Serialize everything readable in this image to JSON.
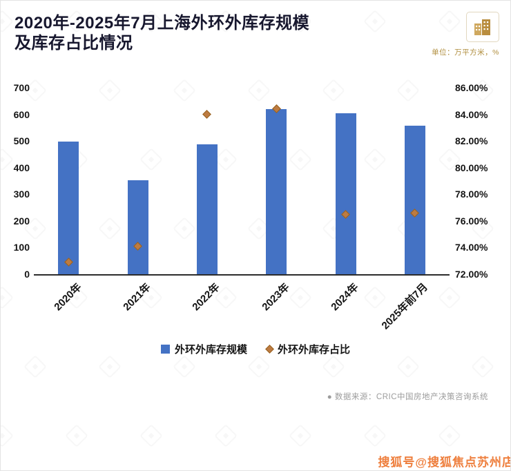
{
  "header": {
    "title_line1": "2020年-2025年7月上海外环外库存规模",
    "title_line2": "及库存占比情况",
    "unit_note": "单位：万平方米，%"
  },
  "chart_data": {
    "type": "bar",
    "subtype": "bar-with-scatter-overlay",
    "title": "2020年-2025年7月上海外环外库存规模及库存占比情况",
    "categories": [
      "2020年",
      "2021年",
      "2022年",
      "2023年",
      "2024年",
      "2025年前7月"
    ],
    "series": [
      {
        "name": "外环外库存规模",
        "type": "bar",
        "axis": "left",
        "values": [
          497,
          352,
          488,
          620,
          603,
          558
        ]
      },
      {
        "name": "外环外库存占比",
        "type": "scatter",
        "axis": "right",
        "values": [
          72.9,
          74.1,
          84.0,
          84.4,
          76.5,
          76.6
        ]
      }
    ],
    "left_axis": {
      "min": 0,
      "max": 700,
      "step": 100,
      "ticks": [
        "700",
        "600",
        "500",
        "400",
        "300",
        "200",
        "100",
        "0"
      ]
    },
    "right_axis": {
      "min": 72,
      "max": 86,
      "step": 2,
      "ticks": [
        "86.00%",
        "84.00%",
        "82.00%",
        "80.00%",
        "78.00%",
        "76.00%",
        "74.00%",
        "72.00%"
      ]
    },
    "grid": false,
    "legend_position": "bottom",
    "legend": [
      {
        "label": "外环外库存规模",
        "marker": "square",
        "color": "#4472c4"
      },
      {
        "label": "外环外库存占比",
        "marker": "diamond",
        "color": "#bd7b41"
      }
    ]
  },
  "footer": {
    "source": "●  数据来源：CRIC中国房地产决策咨询系统"
  },
  "watermark_text": "搜狐号@搜狐焦点苏州店",
  "colors": {
    "bar": "#4472c4",
    "point": "#bd7b41",
    "title": "#17172e",
    "unit_note": "#b08e3e",
    "source_text": "#9c9c9c",
    "watermark": "#ee7e3c"
  }
}
